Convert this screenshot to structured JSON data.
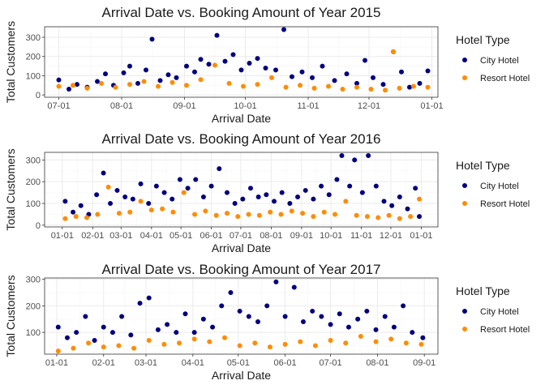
{
  "colors": {
    "city": "#000080",
    "resort": "#FF8C00",
    "grid_major": "#ebebeb",
    "grid_minor": "#f5f5f5",
    "panel_border": "#333333"
  },
  "legend": {
    "title": "Hotel Type",
    "items": [
      "City Hotel",
      "Resort Hotel"
    ]
  },
  "chart_data": [
    {
      "type": "scatter",
      "title": "Arrival Date vs. Booking Amount of Year 2015",
      "xlabel": "Arrival Date",
      "ylabel": "Total Customers",
      "xlim": [
        "2015-06-24",
        "2016-01-04"
      ],
      "ylim": [
        -12,
        355
      ],
      "x_ticks": [
        "07-01",
        "08-01",
        "09-01",
        "10-01",
        "11-01",
        "12-01",
        "01-01"
      ],
      "x_tick_dates": [
        "2015-07-01",
        "2015-08-01",
        "2015-09-01",
        "2015-10-01",
        "2015-11-01",
        "2015-12-01",
        "2016-01-01"
      ],
      "y_ticks": [
        0,
        100,
        200,
        300
      ],
      "grid": true,
      "legend_position": "right",
      "series": [
        {
          "name": "City Hotel",
          "color": "#000080",
          "points": [
            [
              "2015-07-01",
              78
            ],
            [
              "2015-07-06",
              30
            ],
            [
              "2015-07-10",
              55
            ],
            [
              "2015-07-15",
              40
            ],
            [
              "2015-07-20",
              70
            ],
            [
              "2015-07-24",
              110
            ],
            [
              "2015-07-28",
              50
            ],
            [
              "2015-08-02",
              115
            ],
            [
              "2015-08-05",
              150
            ],
            [
              "2015-08-09",
              60
            ],
            [
              "2015-08-13",
              130
            ],
            [
              "2015-08-16",
              290
            ],
            [
              "2015-08-20",
              75
            ],
            [
              "2015-08-24",
              105
            ],
            [
              "2015-08-28",
              90
            ],
            [
              "2015-09-02",
              150
            ],
            [
              "2015-09-06",
              120
            ],
            [
              "2015-09-09",
              185
            ],
            [
              "2015-09-13",
              160
            ],
            [
              "2015-09-17",
              310
            ],
            [
              "2015-09-21",
              175
            ],
            [
              "2015-09-25",
              210
            ],
            [
              "2015-09-29",
              130
            ],
            [
              "2015-10-03",
              165
            ],
            [
              "2015-10-07",
              190
            ],
            [
              "2015-10-11",
              140
            ],
            [
              "2015-10-16",
              130
            ],
            [
              "2015-10-20",
              340
            ],
            [
              "2015-10-24",
              95
            ],
            [
              "2015-10-29",
              120
            ],
            [
              "2015-11-03",
              90
            ],
            [
              "2015-11-08",
              150
            ],
            [
              "2015-11-14",
              75
            ],
            [
              "2015-11-20",
              110
            ],
            [
              "2015-11-25",
              60
            ],
            [
              "2015-11-29",
              180
            ],
            [
              "2015-12-03",
              90
            ],
            [
              "2015-12-08",
              55
            ],
            [
              "2015-12-13",
              225
            ],
            [
              "2015-12-17",
              120
            ],
            [
              "2015-12-21",
              40
            ],
            [
              "2015-12-26",
              60
            ],
            [
              "2015-12-30",
              125
            ]
          ]
        },
        {
          "name": "Resort Hotel",
          "color": "#FF8C00",
          "points": [
            [
              "2015-07-01",
              45
            ],
            [
              "2015-07-08",
              50
            ],
            [
              "2015-07-15",
              35
            ],
            [
              "2015-07-22",
              60
            ],
            [
              "2015-07-29",
              40
            ],
            [
              "2015-08-05",
              55
            ],
            [
              "2015-08-12",
              70
            ],
            [
              "2015-08-19",
              45
            ],
            [
              "2015-08-26",
              65
            ],
            [
              "2015-09-02",
              50
            ],
            [
              "2015-09-09",
              80
            ],
            [
              "2015-09-16",
              155
            ],
            [
              "2015-09-23",
              60
            ],
            [
              "2015-09-30",
              45
            ],
            [
              "2015-10-07",
              55
            ],
            [
              "2015-10-14",
              90
            ],
            [
              "2015-10-21",
              40
            ],
            [
              "2015-10-28",
              50
            ],
            [
              "2015-11-04",
              35
            ],
            [
              "2015-11-11",
              45
            ],
            [
              "2015-11-18",
              30
            ],
            [
              "2015-11-25",
              40
            ],
            [
              "2015-12-02",
              30
            ],
            [
              "2015-12-09",
              25
            ],
            [
              "2015-12-13",
              225
            ],
            [
              "2015-12-16",
              35
            ],
            [
              "2015-12-23",
              45
            ],
            [
              "2015-12-30",
              40
            ]
          ]
        }
      ]
    },
    {
      "type": "scatter",
      "title": "Arrival Date vs. Booking Amount of Year 2016",
      "xlabel": "Arrival Date",
      "ylabel": "Total Customers",
      "xlim": [
        "2015-12-14",
        "2017-01-18"
      ],
      "ylim": [
        -8,
        335
      ],
      "x_ticks": [
        "01-01",
        "02-01",
        "03-01",
        "04-01",
        "05-01",
        "06-01",
        "07-01",
        "08-01",
        "09-01",
        "10-01",
        "11-01",
        "12-01",
        "01-01"
      ],
      "x_tick_dates": [
        "2016-01-01",
        "2016-02-01",
        "2016-03-01",
        "2016-04-01",
        "2016-05-01",
        "2016-06-01",
        "2016-07-01",
        "2016-08-01",
        "2016-09-01",
        "2016-10-01",
        "2016-11-01",
        "2016-12-01",
        "2017-01-01"
      ],
      "y_ticks": [
        0,
        100,
        200,
        300
      ],
      "grid": true,
      "legend_position": "right",
      "series": [
        {
          "name": "City Hotel",
          "color": "#000080",
          "points": [
            [
              "2016-01-04",
              110
            ],
            [
              "2016-01-12",
              60
            ],
            [
              "2016-01-20",
              90
            ],
            [
              "2016-01-28",
              50
            ],
            [
              "2016-02-05",
              140
            ],
            [
              "2016-02-12",
              240
            ],
            [
              "2016-02-19",
              100
            ],
            [
              "2016-02-26",
              160
            ],
            [
              "2016-03-05",
              130
            ],
            [
              "2016-03-13",
              120
            ],
            [
              "2016-03-21",
              190
            ],
            [
              "2016-03-29",
              100
            ],
            [
              "2016-04-06",
              180
            ],
            [
              "2016-04-14",
              150
            ],
            [
              "2016-04-22",
              120
            ],
            [
              "2016-04-30",
              210
            ],
            [
              "2016-05-08",
              170
            ],
            [
              "2016-05-16",
              210
            ],
            [
              "2016-05-24",
              130
            ],
            [
              "2016-06-01",
              180
            ],
            [
              "2016-06-09",
              260
            ],
            [
              "2016-06-17",
              150
            ],
            [
              "2016-06-25",
              100
            ],
            [
              "2016-07-03",
              120
            ],
            [
              "2016-07-11",
              170
            ],
            [
              "2016-07-19",
              130
            ],
            [
              "2016-07-27",
              140
            ],
            [
              "2016-08-04",
              110
            ],
            [
              "2016-08-12",
              150
            ],
            [
              "2016-08-20",
              100
            ],
            [
              "2016-08-28",
              130
            ],
            [
              "2016-09-05",
              160
            ],
            [
              "2016-09-13",
              120
            ],
            [
              "2016-09-21",
              180
            ],
            [
              "2016-09-29",
              140
            ],
            [
              "2016-10-07",
              210
            ],
            [
              "2016-10-12",
              320
            ],
            [
              "2016-10-20",
              180
            ],
            [
              "2016-10-25",
              300
            ],
            [
              "2016-11-02",
              150
            ],
            [
              "2016-11-08",
              320
            ],
            [
              "2016-11-16",
              180
            ],
            [
              "2016-11-24",
              110
            ],
            [
              "2016-12-02",
              90
            ],
            [
              "2016-12-10",
              130
            ],
            [
              "2016-12-18",
              75
            ],
            [
              "2016-12-26",
              170
            ],
            [
              "2016-12-30",
              40
            ]
          ]
        },
        {
          "name": "Resort Hotel",
          "color": "#FF8C00",
          "points": [
            [
              "2016-01-04",
              30
            ],
            [
              "2016-01-15",
              40
            ],
            [
              "2016-01-26",
              35
            ],
            [
              "2016-02-06",
              50
            ],
            [
              "2016-02-17",
              175
            ],
            [
              "2016-02-28",
              55
            ],
            [
              "2016-03-10",
              60
            ],
            [
              "2016-03-21",
              110
            ],
            [
              "2016-04-01",
              70
            ],
            [
              "2016-04-12",
              75
            ],
            [
              "2016-04-23",
              60
            ],
            [
              "2016-05-04",
              150
            ],
            [
              "2016-05-15",
              50
            ],
            [
              "2016-05-26",
              65
            ],
            [
              "2016-06-06",
              45
            ],
            [
              "2016-06-17",
              55
            ],
            [
              "2016-06-28",
              40
            ],
            [
              "2016-07-09",
              50
            ],
            [
              "2016-07-20",
              45
            ],
            [
              "2016-07-31",
              60
            ],
            [
              "2016-08-11",
              50
            ],
            [
              "2016-08-22",
              65
            ],
            [
              "2016-09-02",
              55
            ],
            [
              "2016-09-13",
              40
            ],
            [
              "2016-09-24",
              60
            ],
            [
              "2016-10-05",
              50
            ],
            [
              "2016-10-16",
              110
            ],
            [
              "2016-10-27",
              45
            ],
            [
              "2016-11-07",
              40
            ],
            [
              "2016-11-18",
              35
            ],
            [
              "2016-11-29",
              45
            ],
            [
              "2016-12-10",
              30
            ],
            [
              "2016-12-21",
              40
            ],
            [
              "2016-12-30",
              120
            ]
          ]
        }
      ]
    },
    {
      "type": "scatter",
      "title": "Arrival Date vs. Booking Amount of Year 2017",
      "xlabel": "Arrival Date",
      "ylabel": "Total Customers",
      "xlim": [
        "2016-12-24",
        "2017-09-10"
      ],
      "ylim": [
        18,
        305
      ],
      "x_ticks": [
        "01-01",
        "02-01",
        "03-01",
        "04-01",
        "05-01",
        "06-01",
        "07-01",
        "08-01",
        "09-01"
      ],
      "x_tick_dates": [
        "2017-01-01",
        "2017-02-01",
        "2017-03-01",
        "2017-04-01",
        "2017-05-01",
        "2017-06-01",
        "2017-07-01",
        "2017-08-01",
        "2017-09-01"
      ],
      "y_ticks": [
        100,
        200,
        300
      ],
      "grid": true,
      "legend_position": "right",
      "series": [
        {
          "name": "City Hotel",
          "color": "#000080",
          "points": [
            [
              "2017-01-02",
              120
            ],
            [
              "2017-01-08",
              80
            ],
            [
              "2017-01-14",
              100
            ],
            [
              "2017-01-20",
              160
            ],
            [
              "2017-01-26",
              70
            ],
            [
              "2017-02-01",
              120
            ],
            [
              "2017-02-07",
              100
            ],
            [
              "2017-02-13",
              160
            ],
            [
              "2017-02-19",
              90
            ],
            [
              "2017-02-25",
              210
            ],
            [
              "2017-03-03",
              230
            ],
            [
              "2017-03-09",
              110
            ],
            [
              "2017-03-15",
              130
            ],
            [
              "2017-03-21",
              100
            ],
            [
              "2017-03-27",
              170
            ],
            [
              "2017-04-02",
              100
            ],
            [
              "2017-04-08",
              150
            ],
            [
              "2017-04-14",
              120
            ],
            [
              "2017-04-20",
              200
            ],
            [
              "2017-04-26",
              250
            ],
            [
              "2017-05-02",
              180
            ],
            [
              "2017-05-08",
              160
            ],
            [
              "2017-05-14",
              140
            ],
            [
              "2017-05-20",
              200
            ],
            [
              "2017-05-26",
              290
            ],
            [
              "2017-06-01",
              160
            ],
            [
              "2017-06-07",
              270
            ],
            [
              "2017-06-13",
              140
            ],
            [
              "2017-06-19",
              180
            ],
            [
              "2017-06-25",
              160
            ],
            [
              "2017-07-01",
              130
            ],
            [
              "2017-07-07",
              170
            ],
            [
              "2017-07-13",
              120
            ],
            [
              "2017-07-19",
              150
            ],
            [
              "2017-07-25",
              180
            ],
            [
              "2017-07-31",
              110
            ],
            [
              "2017-08-06",
              160
            ],
            [
              "2017-08-12",
              120
            ],
            [
              "2017-08-18",
              200
            ],
            [
              "2017-08-24",
              100
            ],
            [
              "2017-08-31",
              80
            ]
          ]
        },
        {
          "name": "Resort Hotel",
          "color": "#FF8C00",
          "points": [
            [
              "2017-01-02",
              30
            ],
            [
              "2017-01-12",
              40
            ],
            [
              "2017-01-22",
              60
            ],
            [
              "2017-02-01",
              45
            ],
            [
              "2017-02-11",
              50
            ],
            [
              "2017-02-21",
              40
            ],
            [
              "2017-03-03",
              70
            ],
            [
              "2017-03-13",
              55
            ],
            [
              "2017-03-23",
              60
            ],
            [
              "2017-04-02",
              75
            ],
            [
              "2017-04-12",
              65
            ],
            [
              "2017-04-22",
              80
            ],
            [
              "2017-05-02",
              50
            ],
            [
              "2017-05-12",
              60
            ],
            [
              "2017-05-22",
              45
            ],
            [
              "2017-06-01",
              55
            ],
            [
              "2017-06-11",
              65
            ],
            [
              "2017-06-21",
              50
            ],
            [
              "2017-07-01",
              70
            ],
            [
              "2017-07-11",
              60
            ],
            [
              "2017-07-21",
              85
            ],
            [
              "2017-07-31",
              65
            ],
            [
              "2017-08-10",
              75
            ],
            [
              "2017-08-20",
              60
            ],
            [
              "2017-08-30",
              55
            ]
          ]
        }
      ]
    }
  ]
}
